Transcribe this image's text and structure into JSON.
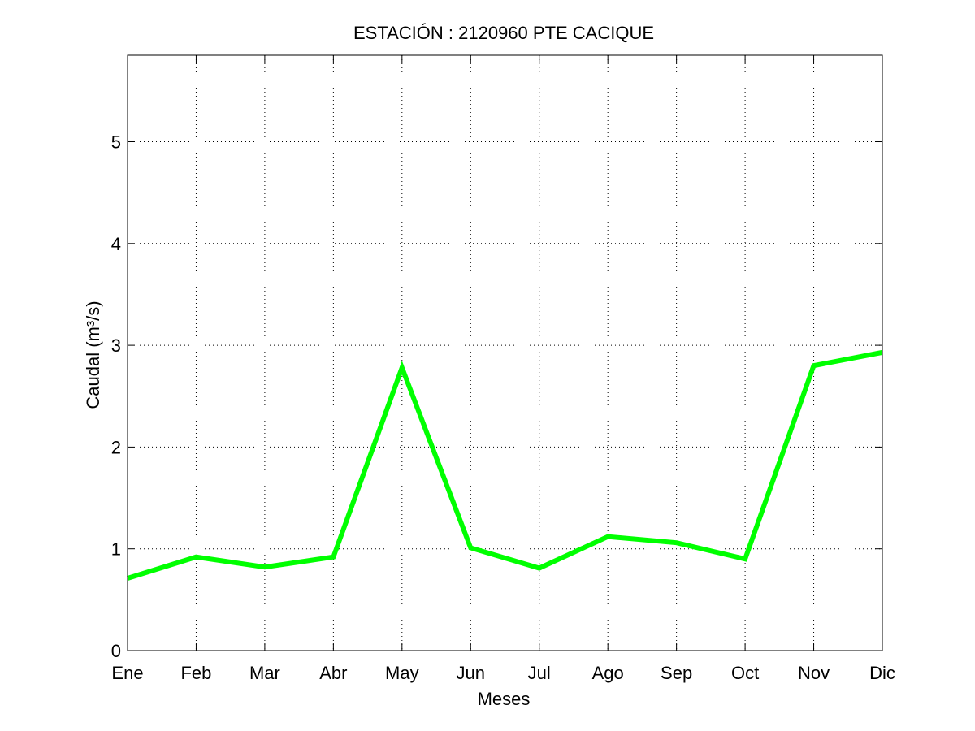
{
  "chart_data": {
    "type": "line",
    "title": "ESTACIÓN :  2120960  PTE CACIQUE",
    "xlabel": "Meses",
    "ylabel": "Caudal (m³/s)",
    "categories": [
      "Ene",
      "Feb",
      "Mar",
      "Abr",
      "May",
      "Jun",
      "Jul",
      "Ago",
      "Sep",
      "Oct",
      "Nov",
      "Dic"
    ],
    "ylim": [
      0,
      5.85
    ],
    "yticks": [
      0,
      1,
      2,
      3,
      4,
      5
    ],
    "grid": true,
    "series": [
      {
        "values": [
          0.71,
          0.92,
          0.82,
          0.92,
          2.78,
          1.01,
          0.81,
          1.12,
          1.06,
          0.9,
          2.8,
          2.93
        ],
        "color": "#00ff00"
      }
    ]
  }
}
